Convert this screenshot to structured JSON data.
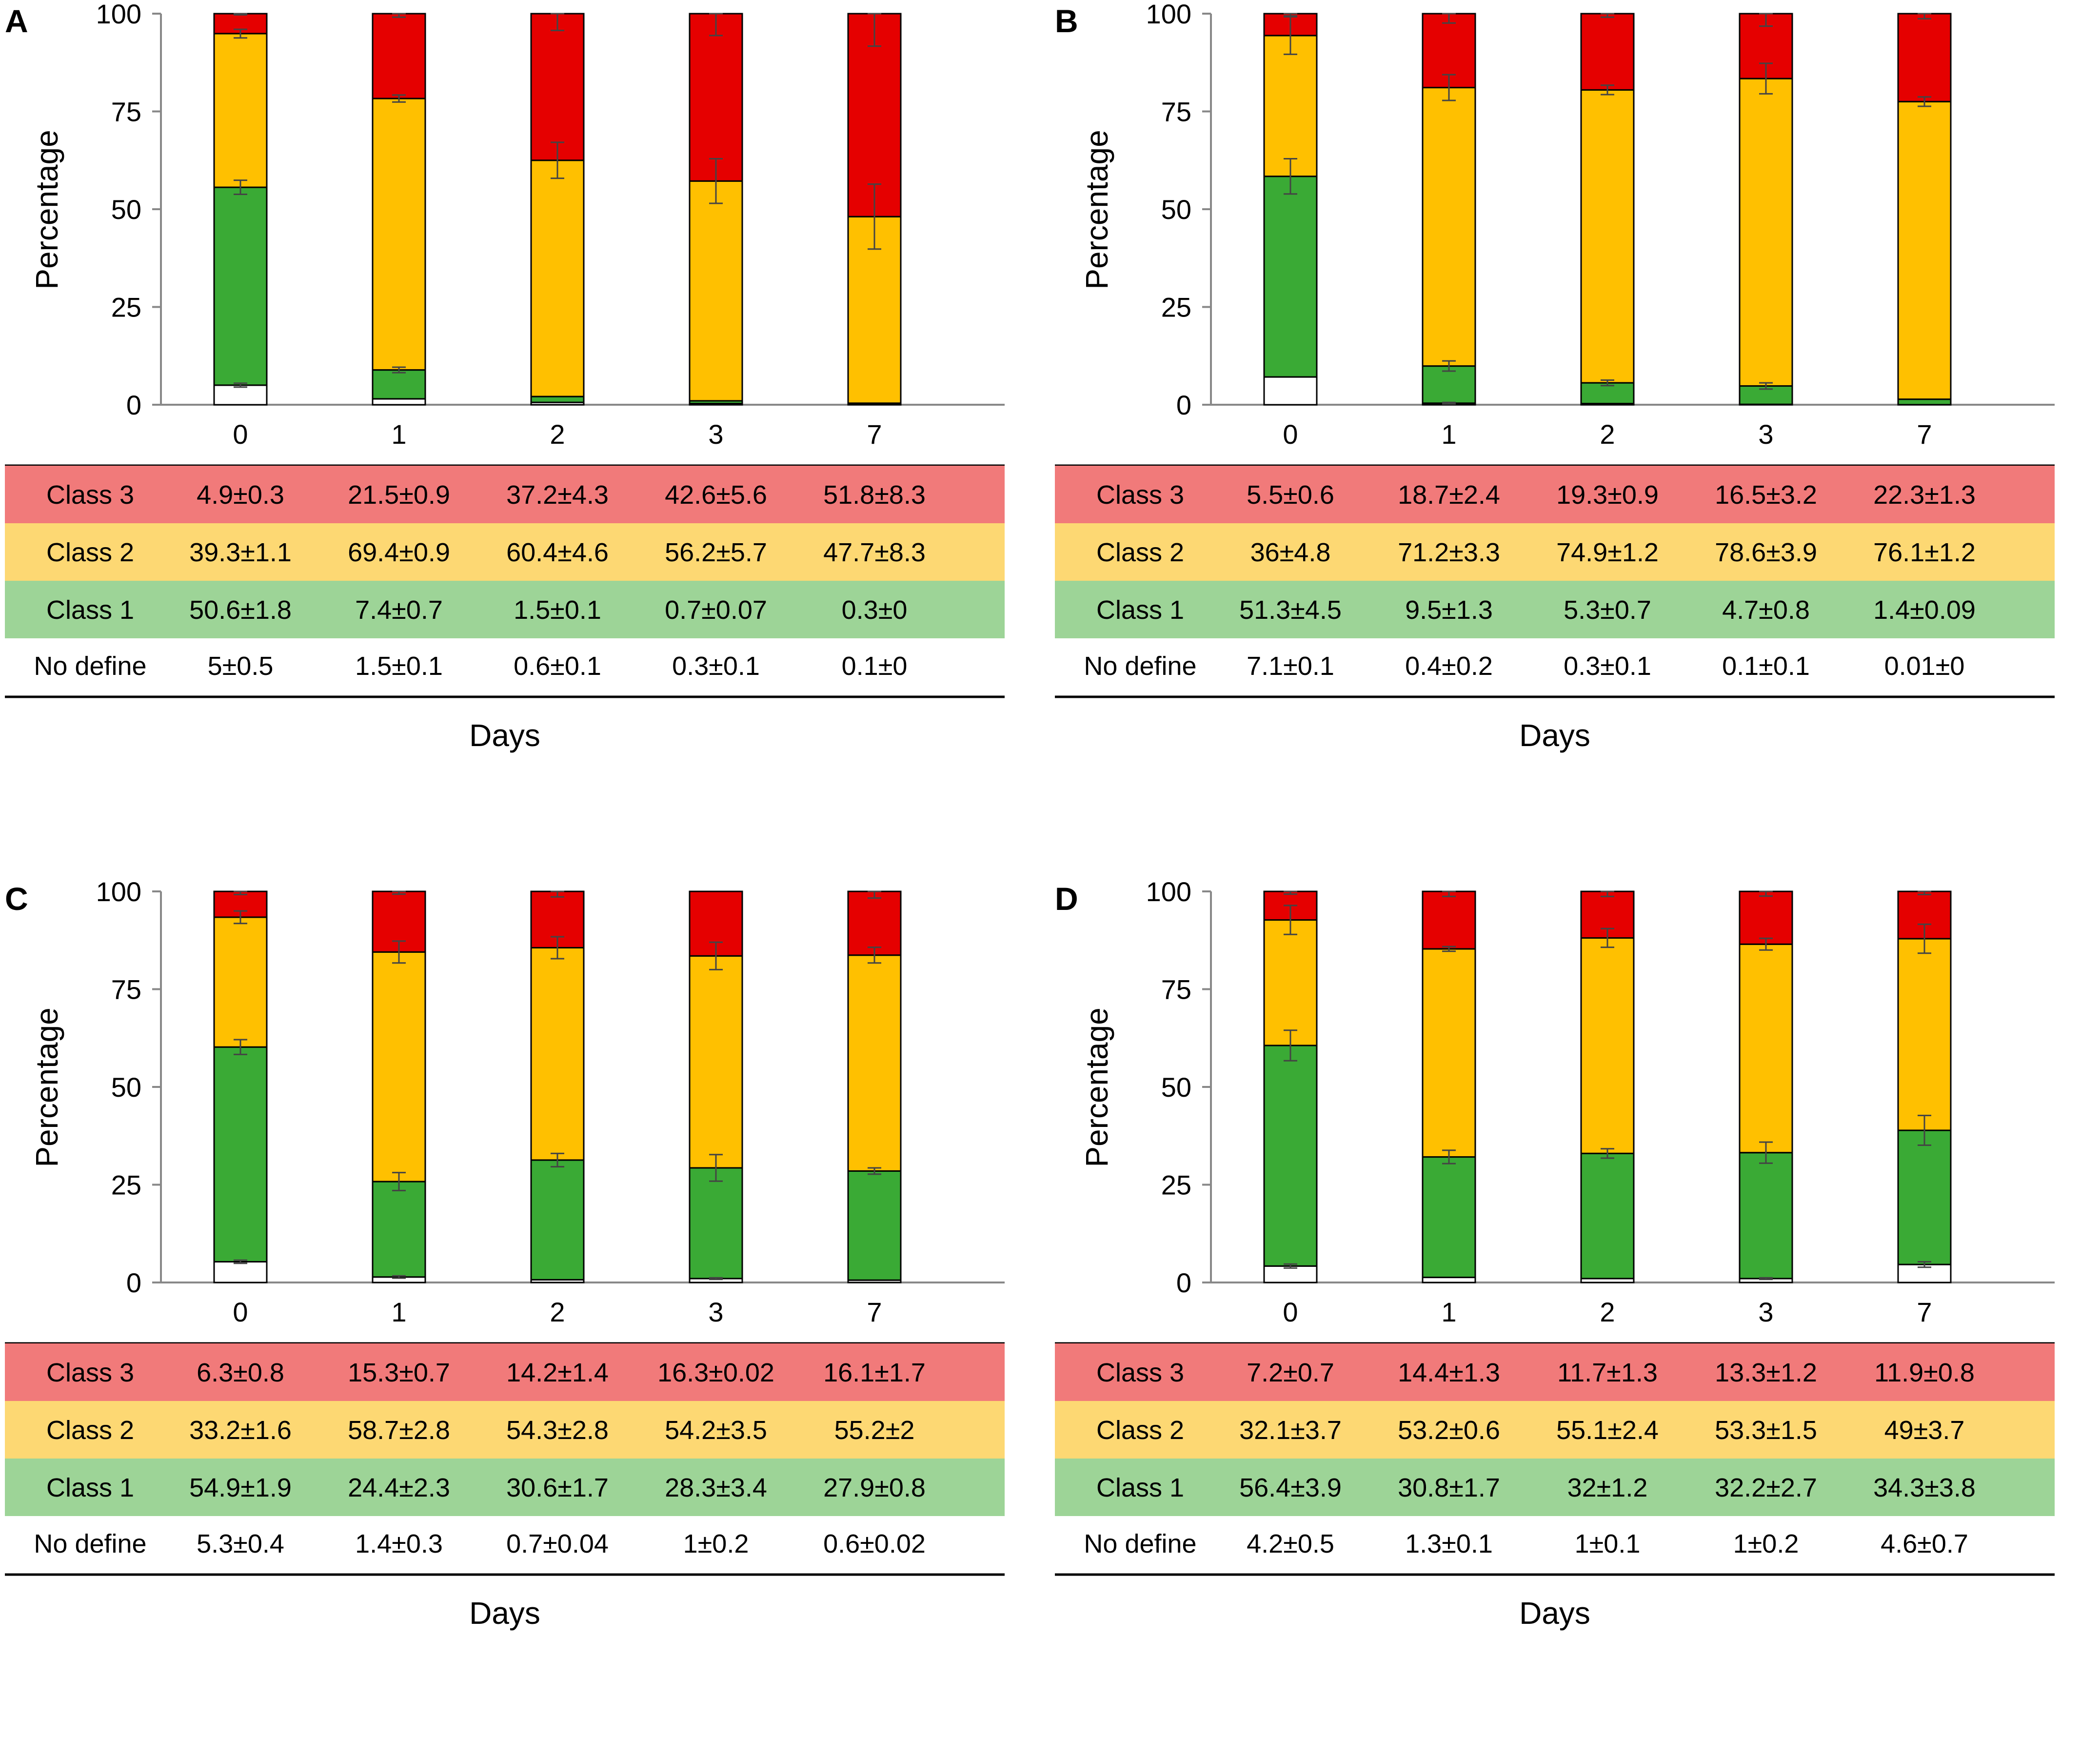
{
  "colors": {
    "class3": "#e50000",
    "class2": "#ffc000",
    "class1": "#3aaa35",
    "nodefine": "#ffffff",
    "row_class3": "#f17a7a",
    "row_class2": "#fdd873",
    "row_class1": "#9dd497",
    "row_nodefine": "#ffffff"
  },
  "chart_data": [
    {
      "panel": "A",
      "type": "bar",
      "stacked": true,
      "ylabel": "Percentage",
      "xlabel": "Days",
      "ylim": [
        0,
        100
      ],
      "yticks": [
        "0",
        "25",
        "50",
        "75",
        "100"
      ],
      "categories": [
        "0",
        "1",
        "2",
        "3",
        "7"
      ],
      "series": [
        {
          "name": "No define",
          "values": [
            5,
            1.5,
            0.6,
            0.3,
            0.1
          ],
          "errors": [
            0.5,
            0.1,
            0.1,
            0.1,
            0
          ],
          "labels": [
            "5±0.5",
            "1.5±0.1",
            "0.6±0.1",
            "0.3±0.1",
            "0.1±0"
          ]
        },
        {
          "name": "Class 1",
          "values": [
            50.6,
            7.4,
            1.5,
            0.7,
            0.3
          ],
          "errors": [
            1.8,
            0.7,
            0.1,
            0.07,
            0
          ],
          "labels": [
            "50.6±1.8",
            "7.4±0.7",
            "1.5±0.1",
            "0.7±0.07",
            "0.3±0"
          ]
        },
        {
          "name": "Class 2",
          "values": [
            39.3,
            69.4,
            60.4,
            56.2,
            47.7
          ],
          "errors": [
            1.1,
            0.9,
            4.6,
            5.7,
            8.3
          ],
          "labels": [
            "39.3±1.1",
            "69.4±0.9",
            "60.4±4.6",
            "56.2±5.7",
            "47.7±8.3"
          ]
        },
        {
          "name": "Class 3",
          "values": [
            4.9,
            21.5,
            37.2,
            42.6,
            51.8
          ],
          "errors": [
            0.3,
            0.9,
            4.3,
            5.6,
            8.3
          ],
          "labels": [
            "4.9±0.3",
            "21.5±0.9",
            "37.2±4.3",
            "42.6±5.6",
            "51.8±8.3"
          ]
        }
      ]
    },
    {
      "panel": "B",
      "type": "bar",
      "stacked": true,
      "ylabel": "Percentage",
      "xlabel": "Days",
      "ylim": [
        0,
        100
      ],
      "yticks": [
        "0",
        "25",
        "50",
        "75",
        "100"
      ],
      "categories": [
        "0",
        "1",
        "2",
        "3",
        "7"
      ],
      "series": [
        {
          "name": "No define",
          "values": [
            7.1,
            0.4,
            0.3,
            0.1,
            0.01
          ],
          "errors": [
            0.1,
            0.2,
            0.1,
            0.1,
            0
          ],
          "labels": [
            "7.1±0.1",
            "0.4±0.2",
            "0.3±0.1",
            "0.1±0.1",
            "0.01±0"
          ]
        },
        {
          "name": "Class 1",
          "values": [
            51.3,
            9.5,
            5.3,
            4.7,
            1.4
          ],
          "errors": [
            4.5,
            1.3,
            0.7,
            0.8,
            0.09
          ],
          "labels": [
            "51.3±4.5",
            "9.5±1.3",
            "5.3±0.7",
            "4.7±0.8",
            "1.4±0.09"
          ]
        },
        {
          "name": "Class 2",
          "values": [
            36,
            71.2,
            74.9,
            78.6,
            76.1
          ],
          "errors": [
            4.8,
            3.3,
            1.2,
            3.9,
            1.2
          ],
          "labels": [
            "36±4.8",
            "71.2±3.3",
            "74.9±1.2",
            "78.6±3.9",
            "76.1±1.2"
          ]
        },
        {
          "name": "Class 3",
          "values": [
            5.5,
            18.7,
            19.3,
            16.5,
            22.3
          ],
          "errors": [
            0.6,
            2.4,
            0.9,
            3.2,
            1.3
          ],
          "labels": [
            "5.5±0.6",
            "18.7±2.4",
            "19.3±0.9",
            "16.5±3.2",
            "22.3±1.3"
          ]
        }
      ]
    },
    {
      "panel": "C",
      "type": "bar",
      "stacked": true,
      "ylabel": "Percentage",
      "xlabel": "Days",
      "ylim": [
        0,
        100
      ],
      "yticks": [
        "0",
        "25",
        "50",
        "75",
        "100"
      ],
      "categories": [
        "0",
        "1",
        "2",
        "3",
        "7"
      ],
      "series": [
        {
          "name": "No define",
          "values": [
            5.3,
            1.4,
            0.7,
            1,
            0.6
          ],
          "errors": [
            0.4,
            0.3,
            0.04,
            0.2,
            0.02
          ],
          "labels": [
            "5.3±0.4",
            "1.4±0.3",
            "0.7±0.04",
            "1±0.2",
            "0.6±0.02"
          ]
        },
        {
          "name": "Class 1",
          "values": [
            54.9,
            24.4,
            30.6,
            28.3,
            27.9
          ],
          "errors": [
            1.9,
            2.3,
            1.7,
            3.4,
            0.8
          ],
          "labels": [
            "54.9±1.9",
            "24.4±2.3",
            "30.6±1.7",
            "28.3±3.4",
            "27.9±0.8"
          ]
        },
        {
          "name": "Class 2",
          "values": [
            33.2,
            58.7,
            54.3,
            54.2,
            55.2
          ],
          "errors": [
            1.6,
            2.8,
            2.8,
            3.5,
            2
          ],
          "labels": [
            "33.2±1.6",
            "58.7±2.8",
            "54.3±2.8",
            "54.2±3.5",
            "55.2±2"
          ]
        },
        {
          "name": "Class 3",
          "values": [
            6.3,
            15.3,
            14.2,
            16.3,
            16.1
          ],
          "errors": [
            0.8,
            0.7,
            1.4,
            0.02,
            1.7
          ],
          "labels": [
            "6.3±0.8",
            "15.3±0.7",
            "14.2±1.4",
            "16.3±0.02",
            "16.1±1.7"
          ]
        }
      ]
    },
    {
      "panel": "D",
      "type": "bar",
      "stacked": true,
      "ylabel": "Percentage",
      "xlabel": "Days",
      "ylim": [
        0,
        100
      ],
      "yticks": [
        "0",
        "25",
        "50",
        "75",
        "100"
      ],
      "categories": [
        "0",
        "1",
        "2",
        "3",
        "7"
      ],
      "series": [
        {
          "name": "No define",
          "values": [
            4.2,
            1.3,
            1,
            1,
            4.6
          ],
          "errors": [
            0.5,
            0.1,
            0.1,
            0.2,
            0.7
          ],
          "labels": [
            "4.2±0.5",
            "1.3±0.1",
            "1±0.1",
            "1±0.2",
            "4.6±0.7"
          ]
        },
        {
          "name": "Class 1",
          "values": [
            56.4,
            30.8,
            32,
            32.2,
            34.3
          ],
          "errors": [
            3.9,
            1.7,
            1.2,
            2.7,
            3.8
          ],
          "labels": [
            "56.4±3.9",
            "30.8±1.7",
            "32±1.2",
            "32.2±2.7",
            "34.3±3.8"
          ]
        },
        {
          "name": "Class 2",
          "values": [
            32.1,
            53.2,
            55.1,
            53.3,
            49
          ],
          "errors": [
            3.7,
            0.6,
            2.4,
            1.5,
            3.7
          ],
          "labels": [
            "32.1±3.7",
            "53.2±0.6",
            "55.1±2.4",
            "53.3±1.5",
            "49±3.7"
          ]
        },
        {
          "name": "Class 3",
          "values": [
            7.2,
            14.4,
            11.7,
            13.3,
            11.9
          ],
          "errors": [
            0.7,
            1.3,
            1.3,
            1.2,
            0.8
          ],
          "labels": [
            "7.2±0.7",
            "14.4±1.3",
            "11.7±1.3",
            "13.3±1.2",
            "11.9±0.8"
          ]
        }
      ]
    }
  ]
}
